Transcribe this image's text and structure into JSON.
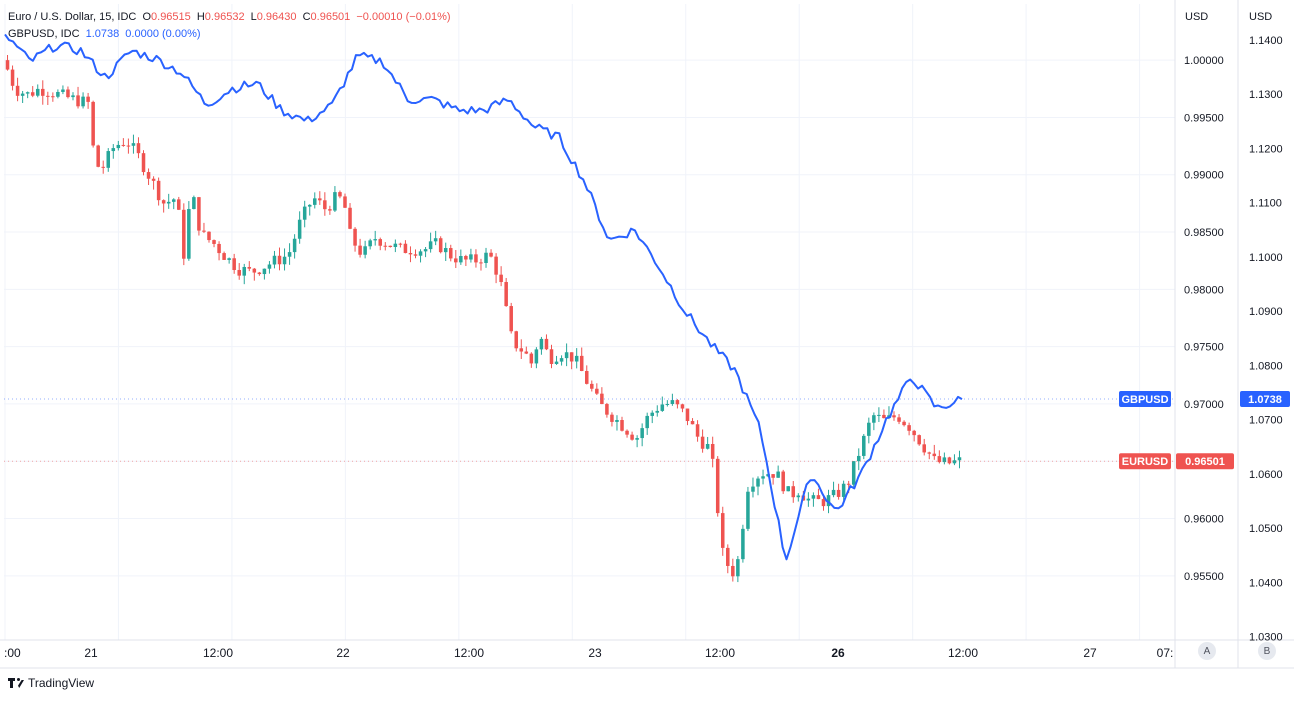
{
  "legend": {
    "symbol1": {
      "name": "Euro / U.S. Dollar, 15, IDC",
      "open_label": "O",
      "open": "0.96515",
      "high_label": "H",
      "high": "0.96532",
      "low_label": "L",
      "low": "0.96430",
      "close_label": "C",
      "close": "0.96501",
      "change": "−0.00010 (−0.01%)"
    },
    "symbol2": {
      "name": "GBPUSD, IDC",
      "value": "1.0738",
      "change": "0.0000 (0.00%)"
    }
  },
  "axis_currency_left": "USD",
  "axis_currency_right": "USD",
  "scale_buttons": [
    "A",
    "B"
  ],
  "footer_brand": "TradingView",
  "colors": {
    "up": "#26a69a",
    "down": "#ef5350",
    "gbp_line": "#2962ff",
    "grid": "#f0f3fa",
    "axis_text": "#131722"
  },
  "chart_data": {
    "type": "line",
    "title": "",
    "x_ticks": [
      ":00",
      "21",
      "12:00",
      "22",
      "12:00",
      "23",
      "12:00",
      "26",
      "12:00",
      "27",
      "07:"
    ],
    "eur_axis": {
      "ticks": [
        "1.00000",
        "0.99500",
        "0.99000",
        "0.98500",
        "0.98000",
        "0.97500",
        "0.97000",
        "0.96500",
        "0.96000",
        "0.95500"
      ],
      "range": [
        0.9494,
        1.0049
      ]
    },
    "gbp_axis": {
      "ticks": [
        "1.1400",
        "1.1300",
        "1.1200",
        "1.1100",
        "1.1000",
        "1.0900",
        "1.0800",
        "1.0700",
        "1.0600",
        "1.0500",
        "1.0400",
        "1.0300"
      ],
      "range": [
        1.0294,
        1.1466
      ]
    },
    "series": [
      {
        "name": "EURUSD",
        "last_label": "0.96501",
        "t": [
          0,
          0.25,
          0.5,
          1,
          1.5,
          2,
          2.5,
          3,
          3.5,
          3.7,
          4,
          4.5,
          5,
          5.5,
          6,
          6.5,
          7,
          7.3,
          7.6,
          7.8,
          8,
          8.5,
          9,
          9.5,
          10,
          10.5,
          11,
          11.5,
          12,
          12.5,
          13,
          13.5,
          13.8,
          14,
          14.5,
          15,
          15.5,
          16,
          16.5,
          17,
          17.5,
          18,
          18.5,
          19,
          19.3,
          19.6,
          20,
          20.5,
          21,
          21.3,
          21.6,
          22,
          22.5,
          23,
          23.5,
          24,
          24.5,
          25,
          25.5,
          26,
          26.5,
          27,
          27.5,
          28,
          28.5,
          29,
          29.5,
          30,
          30.5,
          31,
          31.3,
          31.5,
          31.7,
          32,
          32.5,
          33,
          33.5,
          34,
          34.5,
          35,
          35.5,
          36,
          36.5,
          37,
          37.5,
          38,
          38.5
        ],
        "values": [
          1.0,
          0.999,
          0.9975,
          0.997,
          0.9975,
          0.9972,
          0.9968,
          0.9965,
          0.9962,
          0.991,
          0.9905,
          0.9925,
          0.993,
          0.9915,
          0.9895,
          0.9875,
          0.988,
          0.983,
          0.9888,
          0.9865,
          0.9848,
          0.984,
          0.9828,
          0.9818,
          0.9815,
          0.982,
          0.9825,
          0.983,
          0.986,
          0.988,
          0.987,
          0.9882,
          0.987,
          0.9845,
          0.983,
          0.9845,
          0.984,
          0.9835,
          0.9835,
          0.9835,
          0.984,
          0.983,
          0.9825,
          0.9825,
          0.9828,
          0.983,
          0.981,
          0.9755,
          0.9745,
          0.9735,
          0.976,
          0.974,
          0.9745,
          0.974,
          0.972,
          0.97,
          0.969,
          0.968,
          0.967,
          0.969,
          0.97,
          0.97,
          0.969,
          0.967,
          0.966,
          0.9565,
          0.955,
          0.963,
          0.964,
          0.964,
          0.9635,
          0.9625,
          0.962,
          0.9625,
          0.9615,
          0.9615,
          0.962,
          0.963,
          0.966,
          0.969,
          0.9685,
          0.969,
          0.968,
          0.9665,
          0.965,
          0.9648,
          0.965
        ]
      },
      {
        "name": "GBPUSD",
        "last_label": "1.0738",
        "t": [
          0,
          1,
          2,
          3,
          4,
          5,
          6,
          7,
          8,
          9,
          10,
          11,
          12,
          13,
          14,
          15,
          16,
          17,
          18,
          19,
          20,
          21,
          22,
          23,
          24,
          25,
          26,
          27,
          28,
          29,
          30,
          31,
          32,
          33,
          34,
          35,
          36,
          37,
          38
        ],
        "values": [
          1.141,
          1.136,
          1.139,
          1.138,
          1.133,
          1.138,
          1.1365,
          1.134,
          1.128,
          1.131,
          1.132,
          1.127,
          1.125,
          1.128,
          1.137,
          1.136,
          1.129,
          1.129,
          1.127,
          1.127,
          1.129,
          1.124,
          1.122,
          1.114,
          1.103,
          1.105,
          1.098,
          1.09,
          1.084,
          1.079,
          1.068,
          1.044,
          1.06,
          1.053,
          1.06,
          1.07,
          1.078,
          1.072,
          1.0738
        ]
      }
    ]
  }
}
